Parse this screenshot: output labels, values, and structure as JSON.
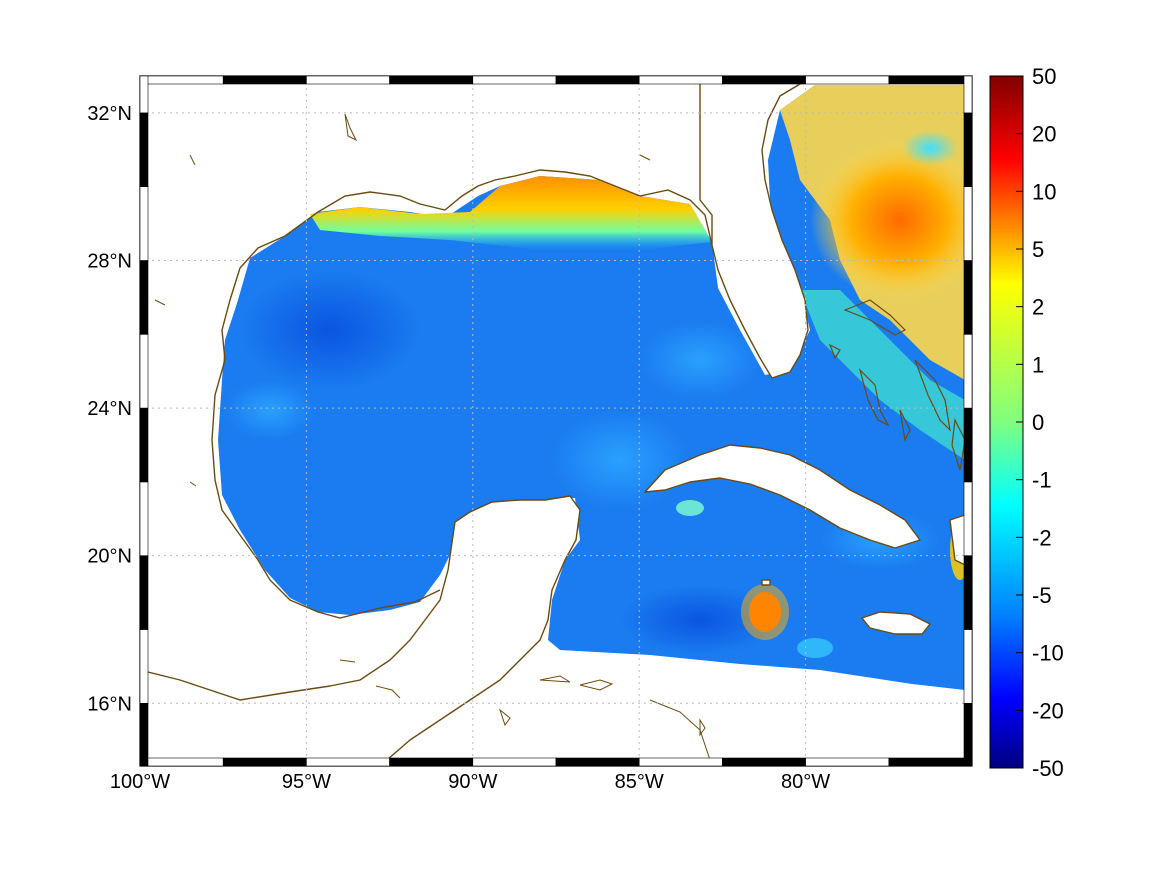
{
  "map": {
    "lon_range": [
      -100,
      -75
    ],
    "lat_range": [
      14.3,
      33
    ],
    "lat_ticks": [
      {
        "value": 32,
        "label": "32°N"
      },
      {
        "value": 28,
        "label": "28°N"
      },
      {
        "value": 24,
        "label": "24°N"
      },
      {
        "value": 20,
        "label": "20°N"
      },
      {
        "value": 16,
        "label": "16°N"
      }
    ],
    "lon_ticks": [
      {
        "value": -100,
        "label": "100°W"
      },
      {
        "value": -95,
        "label": "95°W"
      },
      {
        "value": -90,
        "label": "90°W"
      },
      {
        "value": -85,
        "label": "85°W"
      },
      {
        "value": -80,
        "label": "80°W"
      }
    ],
    "grid": true,
    "coastline_color": "#6b4a12",
    "land_color": "#ffffff",
    "ocean_base_color": "#1a7cf0"
  },
  "colorbar": {
    "labels": [
      "50",
      "20",
      "10",
      "5",
      "2",
      "1",
      "0",
      "-1",
      "-2",
      "-5",
      "-10",
      "-20",
      "-50"
    ],
    "colormap": [
      "#800000",
      "#ff0000",
      "#ffff00",
      "#00ffff",
      "#0000ff",
      "#000080"
    ]
  }
}
